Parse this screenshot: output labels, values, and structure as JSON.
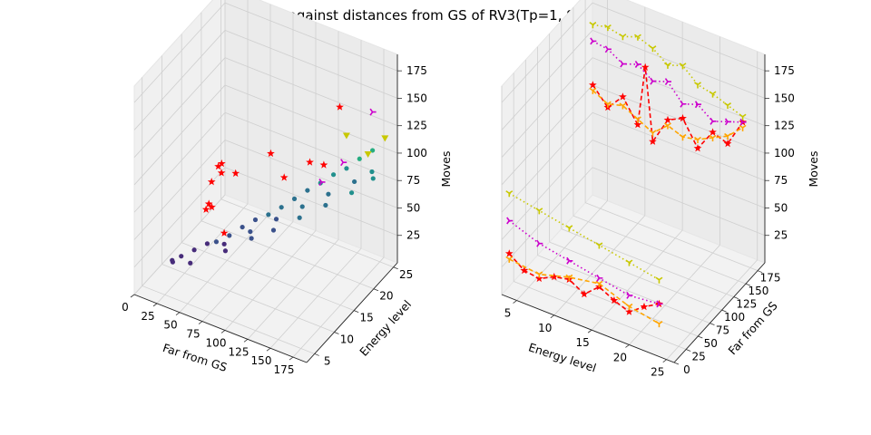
{
  "title": "Moves against distances from GS of RV3(Tp=1, Sp=0.37)",
  "chart_data": [
    {
      "type": "scatter",
      "subtype": "3d",
      "x_axis": {
        "label": "Far from GS",
        "ticks": [
          "0",
          "25",
          "50",
          "75",
          "100",
          "125",
          "150",
          "175"
        ],
        "range": [
          0,
          190
        ]
      },
      "y_axis": {
        "label": "Energy level",
        "ticks": [
          "5",
          "10",
          "15",
          "20",
          "25"
        ],
        "range": [
          3,
          26
        ]
      },
      "z_axis": {
        "label": "Moves",
        "ticks": [
          "25",
          "50",
          "75",
          "100",
          "125",
          "150",
          "175"
        ],
        "range": [
          0,
          190
        ]
      },
      "colormap": "viridis",
      "series": [
        {
          "marker": "circle",
          "color_by": "Moves",
          "points": [
            [
              20,
              8,
              18
            ],
            [
              25,
              7,
              22
            ],
            [
              30,
              8,
              25
            ],
            [
              40,
              9,
              30
            ],
            [
              50,
              10,
              35
            ],
            [
              60,
              10,
              40
            ],
            [
              70,
              11,
              45
            ],
            [
              80,
              12,
              52
            ],
            [
              90,
              13,
              58
            ],
            [
              100,
              14,
              62
            ],
            [
              110,
              15,
              68
            ],
            [
              120,
              16,
              75
            ],
            [
              130,
              17,
              82
            ],
            [
              140,
              18,
              88
            ],
            [
              150,
              19,
              95
            ],
            [
              160,
              20,
              100
            ],
            [
              170,
              21,
              108
            ],
            [
              180,
              22,
              115
            ],
            [
              60,
              12,
              30
            ],
            [
              80,
              14,
              40
            ],
            [
              100,
              16,
              50
            ],
            [
              120,
              18,
              60
            ],
            [
              140,
              20,
              70
            ],
            [
              160,
              22,
              80
            ],
            [
              175,
              23,
              90
            ],
            [
              40,
              8,
              22
            ],
            [
              70,
              10,
              35
            ],
            [
              90,
              12,
              45
            ],
            [
              110,
              13,
              55
            ],
            [
              130,
              15,
              65
            ],
            [
              150,
              17,
              75
            ],
            [
              170,
              19,
              85
            ],
            [
              185,
              21,
              95
            ]
          ]
        },
        {
          "marker": "star",
          "color": "#ff0000",
          "points": [
            [
              5,
              24,
              38
            ],
            [
              10,
              22,
              45
            ],
            [
              20,
              18,
              50
            ],
            [
              40,
              12,
              55
            ],
            [
              55,
              10,
              70
            ],
            [
              70,
              9,
              110
            ],
            [
              90,
              8,
              120
            ],
            [
              120,
              10,
              140
            ],
            [
              150,
              13,
              130
            ],
            [
              170,
              16,
              175
            ],
            [
              60,
              12,
              40
            ],
            [
              30,
              15,
              45
            ],
            [
              100,
              18,
              80
            ],
            [
              135,
              20,
              95
            ]
          ]
        },
        {
          "marker": "triangle",
          "color": "#c8c800",
          "points": [
            [
              160,
              20,
              130
            ],
            [
              175,
              22,
              110
            ],
            [
              185,
              24,
              120
            ]
          ]
        },
        {
          "marker": "tri_right",
          "color": "#cc00cc",
          "points": [
            [
              180,
              22,
              150
            ],
            [
              165,
              18,
              115
            ],
            [
              150,
              16,
              100
            ]
          ]
        }
      ]
    },
    {
      "type": "line",
      "subtype": "3d",
      "x_axis": {
        "label": "Energy level",
        "ticks": [
          "5",
          "10",
          "15",
          "20",
          "25"
        ],
        "range": [
          3,
          26
        ]
      },
      "y_axis": {
        "label": "Far from GS",
        "ticks": [
          "0",
          "25",
          "50",
          "75",
          "100",
          "125",
          "150",
          "175"
        ],
        "range": [
          0,
          190
        ]
      },
      "z_axis": {
        "label": "Moves",
        "ticks": [
          "25",
          "50",
          "75",
          "100",
          "125",
          "150",
          "175"
        ],
        "range": [
          0,
          190
        ]
      },
      "series": [
        {
          "color": "#ff0000",
          "linestyle": "dashed",
          "marker": "star",
          "points": [
            [
              4,
              175,
              110
            ],
            [
              6,
              175,
              95
            ],
            [
              8,
              175,
              110
            ],
            [
              10,
              175,
              90
            ],
            [
              11,
              175,
              145
            ],
            [
              12,
              175,
              80
            ],
            [
              14,
              175,
              105
            ],
            [
              16,
              175,
              112
            ],
            [
              18,
              175,
              90
            ],
            [
              20,
              175,
              110
            ],
            [
              22,
              175,
              105
            ],
            [
              24,
              175,
              130
            ],
            [
              4,
              0,
              40
            ],
            [
              6,
              0,
              30
            ],
            [
              8,
              0,
              28
            ],
            [
              10,
              0,
              35
            ],
            [
              12,
              0,
              38
            ],
            [
              14,
              0,
              30
            ],
            [
              16,
              0,
              42
            ],
            [
              18,
              0,
              35
            ],
            [
              20,
              0,
              30
            ],
            [
              22,
              0,
              40
            ],
            [
              24,
              0,
              48
            ]
          ]
        },
        {
          "color": "#ffa500",
          "linestyle": "dashed",
          "marker": "tri_down",
          "points": [
            [
              4,
              175,
              105
            ],
            [
              6,
              175,
              98
            ],
            [
              8,
              175,
              102
            ],
            [
              10,
              175,
              95
            ],
            [
              12,
              175,
              88
            ],
            [
              14,
              175,
              100
            ],
            [
              16,
              175,
              95
            ],
            [
              18,
              175,
              98
            ],
            [
              20,
              175,
              105
            ],
            [
              22,
              175,
              112
            ],
            [
              24,
              175,
              125
            ],
            [
              4,
              0,
              35
            ],
            [
              8,
              0,
              32
            ],
            [
              12,
              0,
              40
            ],
            [
              16,
              0,
              45
            ],
            [
              20,
              0,
              35
            ],
            [
              24,
              0,
              30
            ]
          ]
        },
        {
          "color": "#c8c800",
          "linestyle": "dotted",
          "marker": "tri_down",
          "points": [
            [
              4,
              175,
              165
            ],
            [
              6,
              175,
              168
            ],
            [
              8,
              175,
              165
            ],
            [
              10,
              175,
              170
            ],
            [
              12,
              175,
              165
            ],
            [
              14,
              175,
              155
            ],
            [
              16,
              175,
              160
            ],
            [
              18,
              175,
              148
            ],
            [
              20,
              175,
              145
            ],
            [
              22,
              175,
              140
            ],
            [
              24,
              175,
              135
            ],
            [
              4,
              0,
              95
            ],
            [
              8,
              0,
              90
            ],
            [
              12,
              0,
              85
            ],
            [
              16,
              0,
              80
            ],
            [
              20,
              0,
              75
            ],
            [
              24,
              0,
              70
            ]
          ]
        },
        {
          "color": "#cc00cc",
          "linestyle": "dotted",
          "marker": "tri_right",
          "points": [
            [
              4,
              175,
              150
            ],
            [
              6,
              175,
              148
            ],
            [
              8,
              175,
              140
            ],
            [
              10,
              175,
              145
            ],
            [
              12,
              175,
              135
            ],
            [
              14,
              175,
              140
            ],
            [
              16,
              175,
              125
            ],
            [
              18,
              175,
              130
            ],
            [
              20,
              175,
              120
            ],
            [
              22,
              175,
              125
            ],
            [
              24,
              175,
              130
            ],
            [
              4,
              0,
              70
            ],
            [
              8,
              0,
              60
            ],
            [
              12,
              0,
              55
            ],
            [
              16,
              0,
              50
            ],
            [
              20,
              0,
              45
            ],
            [
              24,
              0,
              48
            ]
          ]
        }
      ]
    }
  ]
}
